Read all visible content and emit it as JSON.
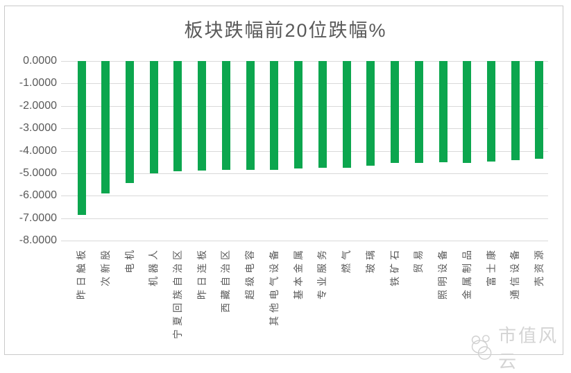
{
  "watermark": {
    "text": "市值风云",
    "logo": "panda-logo-icon"
  },
  "colors": {
    "bar": "#0CA64E",
    "grid": "#D9D9D9",
    "axis_text": "#595959",
    "title_text": "#595959",
    "frame_border": "#C9C9C9",
    "watermark": "#D4D4D4"
  },
  "chart_data": {
    "type": "bar",
    "title": "板块跌幅前20位跌幅%",
    "orientation": "vertical-negative",
    "categories": [
      "昨日触板",
      "次新股",
      "电机",
      "机器人",
      "宁夏回族自治区",
      "昨日连板",
      "西藏自治区",
      "超级电容",
      "其他电气设备",
      "基本金属",
      "专业服务",
      "燃气",
      "玻璃",
      "铁矿石",
      "贸易",
      "照明设备",
      "金属制品",
      "富士康",
      "通信设备",
      "壳资源"
    ],
    "values": [
      -6.85,
      -5.9,
      -5.45,
      -5.0,
      -4.9,
      -4.88,
      -4.86,
      -4.85,
      -4.85,
      -4.8,
      -4.76,
      -4.75,
      -4.66,
      -4.53,
      -4.54,
      -4.52,
      -4.53,
      -4.47,
      -4.41,
      -4.36
    ],
    "ylim": [
      -8,
      0
    ],
    "ytick_labels": [
      "0.0000",
      "-1.0000",
      "-2.0000",
      "-3.0000",
      "-4.0000",
      "-5.0000",
      "-6.0000",
      "-7.0000",
      "-8.0000"
    ],
    "xlabel": "",
    "ylabel": "",
    "grid": true,
    "legend": "none",
    "bar_color": "#0CA64E"
  }
}
